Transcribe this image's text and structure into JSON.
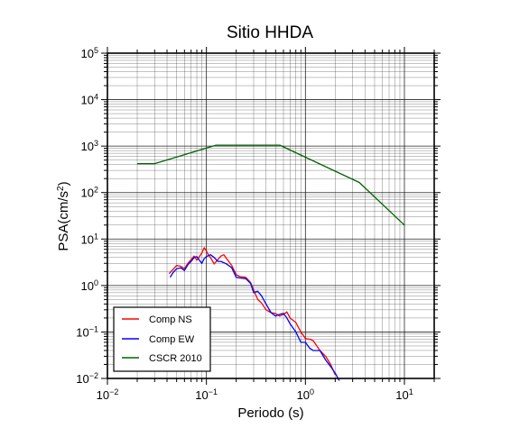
{
  "chart_data": {
    "type": "line",
    "title": "Sitio HHDA",
    "xlabel": "Periodo (s)",
    "ylabel_parts": [
      "PSA(cm/s",
      "2",
      ")"
    ],
    "xscale": "log",
    "yscale": "log",
    "xlim": [
      0.01,
      20
    ],
    "ylim": [
      0.01,
      100000
    ],
    "grid": true,
    "legend_position": "bottom-left",
    "x_tick_labels": [
      {
        "value": 0.01,
        "base": "10",
        "exp": "−2"
      },
      {
        "value": 0.1,
        "base": "10",
        "exp": "−1"
      },
      {
        "value": 1,
        "base": "10",
        "exp": "0"
      },
      {
        "value": 10,
        "base": "10",
        "exp": "1"
      }
    ],
    "y_tick_labels": [
      {
        "value": 0.01,
        "base": "10",
        "exp": "−2"
      },
      {
        "value": 0.1,
        "base": "10",
        "exp": "−1"
      },
      {
        "value": 1,
        "base": "10",
        "exp": "0"
      },
      {
        "value": 10,
        "base": "10",
        "exp": "1"
      },
      {
        "value": 100,
        "base": "10",
        "exp": "2"
      },
      {
        "value": 1000,
        "base": "10",
        "exp": "3"
      },
      {
        "value": 10000,
        "base": "10",
        "exp": "4"
      },
      {
        "value": 100000,
        "base": "10",
        "exp": "5"
      }
    ],
    "series": [
      {
        "name": "Comp NS",
        "color": "#ff0000",
        "x": [
          0.042,
          0.045,
          0.05,
          0.055,
          0.06,
          0.065,
          0.07,
          0.075,
          0.08,
          0.085,
          0.09,
          0.095,
          0.1,
          0.105,
          0.11,
          0.12,
          0.13,
          0.14,
          0.15,
          0.16,
          0.18,
          0.2,
          0.22,
          0.25,
          0.28,
          0.3,
          0.33,
          0.36,
          0.4,
          0.45,
          0.5,
          0.55,
          0.6,
          0.65,
          0.7,
          0.8,
          0.9,
          1.0,
          1.1,
          1.2,
          1.4,
          1.6,
          1.8,
          2.0
        ],
        "y": [
          1.8,
          2.1,
          2.7,
          2.6,
          2.3,
          3.0,
          3.6,
          4.3,
          3.5,
          4.2,
          5.0,
          6.5,
          5.5,
          4.5,
          4.0,
          2.9,
          3.6,
          4.3,
          4.6,
          3.8,
          2.7,
          1.7,
          1.55,
          1.5,
          1.15,
          0.8,
          0.5,
          0.42,
          0.3,
          0.26,
          0.25,
          0.22,
          0.24,
          0.27,
          0.2,
          0.16,
          0.1,
          0.072,
          0.07,
          0.065,
          0.04,
          0.03,
          0.02,
          0.012
        ]
      },
      {
        "name": "Comp EW",
        "color": "#0000ff",
        "x": [
          0.043,
          0.046,
          0.05,
          0.055,
          0.06,
          0.065,
          0.07,
          0.075,
          0.08,
          0.085,
          0.09,
          0.095,
          0.1,
          0.11,
          0.12,
          0.13,
          0.14,
          0.16,
          0.18,
          0.2,
          0.22,
          0.25,
          0.28,
          0.3,
          0.33,
          0.36,
          0.4,
          0.45,
          0.5,
          0.55,
          0.6,
          0.65,
          0.7,
          0.8,
          0.9,
          1.0,
          1.1,
          1.2,
          1.4,
          1.6,
          1.8,
          2.0,
          2.2
        ],
        "y": [
          1.5,
          1.9,
          2.3,
          2.4,
          2.1,
          2.8,
          3.3,
          4.0,
          4.2,
          3.5,
          3.0,
          3.8,
          4.2,
          4.6,
          4.0,
          3.3,
          3.3,
          2.9,
          2.4,
          1.5,
          1.45,
          1.4,
          1.1,
          0.7,
          0.75,
          0.6,
          0.4,
          0.26,
          0.22,
          0.24,
          0.25,
          0.2,
          0.15,
          0.1,
          0.06,
          0.06,
          0.045,
          0.04,
          0.04,
          0.025,
          0.018,
          0.013,
          0.009
        ]
      },
      {
        "name": "CSCR 2010",
        "color": "#006400",
        "x": [
          0.02,
          0.03,
          0.125,
          0.55,
          3.5,
          10
        ],
        "y": [
          420,
          420,
          1050,
          1050,
          165,
          20
        ]
      }
    ]
  }
}
